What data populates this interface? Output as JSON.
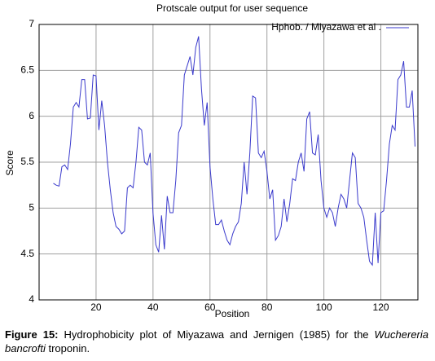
{
  "chart_data": {
    "type": "line",
    "title": "Protscale output for  user  sequence",
    "xlabel": "Position",
    "ylabel": "Score",
    "x": [
      5,
      6,
      7,
      8,
      9,
      10,
      11,
      12,
      13,
      14,
      15,
      16,
      17,
      18,
      19,
      20,
      21,
      22,
      23,
      24,
      25,
      26,
      27,
      28,
      29,
      30,
      31,
      32,
      33,
      34,
      35,
      36,
      37,
      38,
      39,
      40,
      41,
      42,
      43,
      44,
      45,
      46,
      47,
      48,
      49,
      50,
      51,
      52,
      53,
      54,
      55,
      56,
      57,
      58,
      59,
      60,
      61,
      62,
      63,
      64,
      65,
      66,
      67,
      68,
      69,
      70,
      71,
      72,
      73,
      74,
      75,
      76,
      77,
      78,
      79,
      80,
      81,
      82,
      83,
      84,
      85,
      86,
      87,
      88,
      89,
      90,
      91,
      92,
      93,
      94,
      95,
      96,
      97,
      98,
      99,
      100,
      101,
      102,
      103,
      104,
      105,
      106,
      107,
      108,
      109,
      110,
      111,
      112,
      113,
      114,
      115,
      116,
      117,
      118,
      119,
      120,
      121,
      122,
      123,
      124,
      125,
      126,
      127,
      128,
      129,
      130,
      131,
      132
    ],
    "series": [
      {
        "name": "Hphob. /  Miyazawa et al .",
        "color": "#3a3acc",
        "values": [
          5.27,
          5.25,
          5.24,
          5.45,
          5.47,
          5.42,
          5.7,
          6.1,
          6.15,
          6.1,
          6.4,
          6.4,
          5.97,
          5.98,
          6.45,
          6.44,
          5.85,
          6.17,
          5.9,
          5.5,
          5.2,
          4.95,
          4.8,
          4.77,
          4.72,
          4.75,
          5.22,
          5.25,
          5.22,
          5.5,
          5.88,
          5.85,
          5.5,
          5.47,
          5.6,
          4.95,
          4.6,
          4.52,
          4.92,
          4.55,
          5.13,
          4.95,
          4.95,
          5.3,
          5.82,
          5.9,
          6.45,
          6.55,
          6.65,
          6.45,
          6.75,
          6.87,
          6.3,
          5.9,
          6.15,
          5.45,
          5.1,
          4.82,
          4.82,
          4.87,
          4.75,
          4.65,
          4.6,
          4.72,
          4.8,
          4.85,
          5.05,
          5.5,
          5.15,
          5.6,
          6.22,
          6.2,
          5.6,
          5.55,
          5.62,
          5.4,
          5.1,
          5.2,
          4.65,
          4.7,
          4.8,
          5.1,
          4.85,
          5.05,
          5.32,
          5.3,
          5.5,
          5.6,
          5.4,
          5.97,
          6.05,
          5.6,
          5.58,
          5.8,
          5.3,
          5.0,
          4.9,
          5.0,
          4.95,
          4.8,
          5.0,
          5.15,
          5.1,
          5.0,
          5.3,
          5.6,
          5.55,
          5.05,
          5.0,
          4.9,
          4.65,
          4.42,
          4.38,
          4.95,
          4.4,
          4.95,
          4.97,
          5.3,
          5.7,
          5.9,
          5.85,
          6.4,
          6.45,
          6.6,
          6.1,
          6.1,
          6.28,
          5.67
        ]
      }
    ],
    "xlim": [
      0,
      133
    ],
    "xticks": [
      20,
      40,
      60,
      80,
      100,
      120
    ],
    "ylim": [
      4,
      7
    ],
    "yticks": [
      4,
      4.5,
      5,
      5.5,
      6,
      6.5,
      7
    ],
    "grid": true,
    "legend": "upper right"
  },
  "caption": {
    "label": "Figure 15:",
    "text": " Hydrophobicity plot of Miyazawa and Jernigen (1985) for the ",
    "species": "Wuchereria bancrofti",
    "end": " troponin."
  }
}
